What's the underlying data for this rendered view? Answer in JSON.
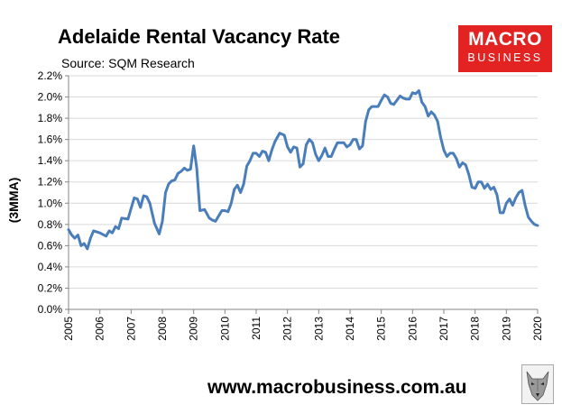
{
  "header": {
    "title": "Adelaide Rental Vacancy Rate",
    "subtitle": "Source: SQM Research"
  },
  "brand": {
    "line1": "MACRO",
    "line2": "BUSINESS",
    "color": "#e22322"
  },
  "footer": {
    "url": "www.macrobusiness.com.au",
    "mascot_icon": "wolf-icon"
  },
  "colors": {
    "series": "#4a7ebb",
    "grid": "#d9d9d9",
    "axis": "#868686"
  },
  "chart_data": {
    "type": "line",
    "title": "Adelaide Rental Vacancy Rate",
    "subtitle": "Source: SQM Research",
    "xlabel": "",
    "ylabel": "(3MMA)",
    "xlim": [
      2005,
      2020
    ],
    "ylim": [
      0.0,
      2.2
    ],
    "y_tick_step": 0.2,
    "x_ticks": [
      "2005",
      "2006",
      "2007",
      "2008",
      "2009",
      "2010",
      "2011",
      "2012",
      "2013",
      "2014",
      "2015",
      "2016",
      "2017",
      "2018",
      "2019",
      "2020"
    ],
    "y_ticks": [
      "0.0%",
      "0.2%",
      "0.4%",
      "0.6%",
      "0.8%",
      "1.0%",
      "1.2%",
      "1.4%",
      "1.6%",
      "1.8%",
      "2.0%",
      "2.2%"
    ],
    "grid": true,
    "legend": "none",
    "series": [
      {
        "x": [
          2005.0,
          2005.1,
          2005.2,
          2005.3,
          2005.4,
          2005.5,
          2005.6,
          2005.7,
          2005.8,
          2006.0,
          2006.2,
          2006.3,
          2006.4,
          2006.5,
          2006.6,
          2006.7,
          2006.9,
          2007.0,
          2007.1,
          2007.2,
          2007.3,
          2007.4,
          2007.5,
          2007.6,
          2007.75,
          2007.9,
          2008.0,
          2008.1,
          2008.2,
          2008.3,
          2008.4,
          2008.5,
          2008.6,
          2008.7,
          2008.8,
          2008.9,
          2009.0,
          2009.1,
          2009.2,
          2009.35,
          2009.5,
          2009.6,
          2009.7,
          2009.8,
          2009.9,
          2010.0,
          2010.1,
          2010.2,
          2010.3,
          2010.4,
          2010.5,
          2010.6,
          2010.7,
          2010.8,
          2010.9,
          2011.0,
          2011.1,
          2011.2,
          2011.3,
          2011.4,
          2011.5,
          2011.6,
          2011.75,
          2011.9,
          2012.0,
          2012.1,
          2012.2,
          2012.3,
          2012.4,
          2012.5,
          2012.6,
          2012.7,
          2012.8,
          2012.9,
          2013.0,
          2013.1,
          2013.2,
          2013.3,
          2013.4,
          2013.5,
          2013.6,
          2013.7,
          2013.8,
          2013.9,
          2014.0,
          2014.1,
          2014.2,
          2014.3,
          2014.4,
          2014.5,
          2014.6,
          2014.7,
          2014.8,
          2014.9,
          2015.0,
          2015.1,
          2015.2,
          2015.3,
          2015.4,
          2015.5,
          2015.6,
          2015.7,
          2015.8,
          2015.9,
          2016.0,
          2016.1,
          2016.2,
          2016.3,
          2016.4,
          2016.5,
          2016.6,
          2016.7,
          2016.8,
          2016.9,
          2017.0,
          2017.1,
          2017.2,
          2017.3,
          2017.4,
          2017.5,
          2017.6,
          2017.7,
          2017.8,
          2017.9,
          2018.0,
          2018.1,
          2018.2,
          2018.3,
          2018.4,
          2018.5,
          2018.6,
          2018.7,
          2018.8,
          2018.9,
          2019.0,
          2019.1,
          2019.2,
          2019.3,
          2019.4,
          2019.5,
          2019.6,
          2019.7,
          2019.8,
          2019.9,
          2020.0
        ],
        "y": [
          0.75,
          0.7,
          0.67,
          0.7,
          0.6,
          0.62,
          0.57,
          0.67,
          0.74,
          0.72,
          0.69,
          0.74,
          0.72,
          0.78,
          0.76,
          0.86,
          0.85,
          0.95,
          1.05,
          1.04,
          0.96,
          1.07,
          1.06,
          1.0,
          0.81,
          0.71,
          0.83,
          1.1,
          1.18,
          1.21,
          1.22,
          1.28,
          1.3,
          1.33,
          1.31,
          1.32,
          1.54,
          1.33,
          0.93,
          0.94,
          0.86,
          0.84,
          0.83,
          0.88,
          0.93,
          0.93,
          0.92,
          1.0,
          1.13,
          1.17,
          1.1,
          1.18,
          1.35,
          1.4,
          1.47,
          1.47,
          1.44,
          1.49,
          1.48,
          1.4,
          1.5,
          1.58,
          1.66,
          1.64,
          1.53,
          1.48,
          1.53,
          1.52,
          1.34,
          1.37,
          1.55,
          1.6,
          1.57,
          1.46,
          1.4,
          1.45,
          1.52,
          1.44,
          1.44,
          1.51,
          1.57,
          1.57,
          1.57,
          1.53,
          1.55,
          1.6,
          1.6,
          1.51,
          1.54,
          1.77,
          1.88,
          1.91,
          1.91,
          1.91,
          1.97,
          2.02,
          2.0,
          1.94,
          1.93,
          1.97,
          2.01,
          1.99,
          1.98,
          1.98,
          2.04,
          2.03,
          2.06,
          1.95,
          1.91,
          1.82,
          1.86,
          1.83,
          1.77,
          1.62,
          1.5,
          1.44,
          1.47,
          1.47,
          1.42,
          1.34,
          1.38,
          1.36,
          1.27,
          1.15,
          1.14,
          1.2,
          1.2,
          1.14,
          1.18,
          1.13,
          1.15,
          1.08,
          0.91,
          0.91,
          1.0,
          1.04,
          0.98,
          1.05,
          1.1,
          1.12,
          0.98,
          0.87,
          0.83,
          0.8,
          0.79
        ]
      }
    ]
  }
}
